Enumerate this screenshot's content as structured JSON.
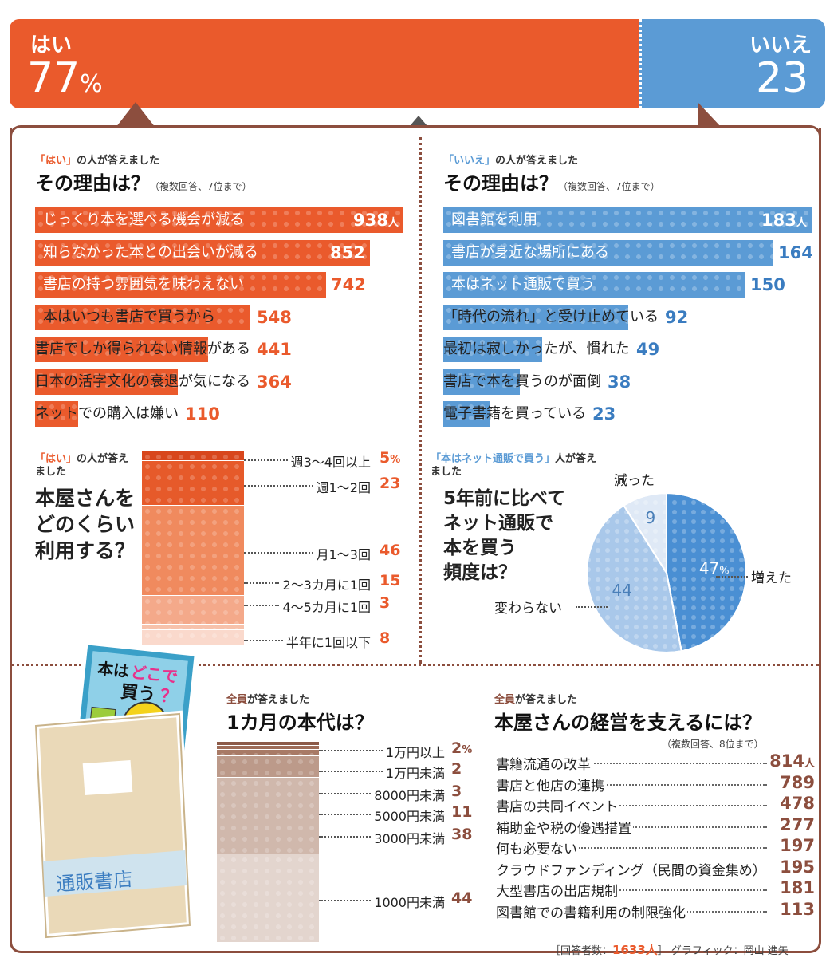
{
  "top": {
    "yes_label": "はい",
    "yes_value": "77",
    "yes_unit": "%",
    "no_label": "いいえ",
    "no_value": "23",
    "chart_data": {
      "type": "bar",
      "categories": [
        "はい",
        "いいえ"
      ],
      "values": [
        77,
        23
      ]
    }
  },
  "yes_reasons": {
    "tag_prefix": "「はい」",
    "tag_rest": "の人が答えました",
    "title": "その理由は？",
    "note": "（複数回答、7位まで）",
    "unit": "人",
    "chart_data": {
      "type": "bar",
      "categories": [
        "じっくり本を選べる機会が減る",
        "知らなかった本との出会いが減る",
        "書店の持つ雰囲気を味わえない",
        "本はいつも書店で買うから",
        "書店でしか得られない情報がある",
        "日本の活字文化の衰退が気になる",
        "ネットでの購入は嫌い"
      ],
      "values": [
        938,
        852,
        742,
        548,
        441,
        364,
        110
      ],
      "xlim": [
        0,
        938
      ]
    }
  },
  "no_reasons": {
    "tag_prefix": "「いいえ」",
    "tag_rest": "の人が答えました",
    "title": "その理由は？",
    "note": "（複数回答、7位まで）",
    "unit": "人",
    "chart_data": {
      "type": "bar",
      "categories": [
        "図書館を利用",
        "書店が身近な場所にある",
        "本はネット通販で買う",
        "「時代の流れ」と受け止めている",
        "最初は寂しかったが、慣れた",
        "書店で本を買うのが面倒",
        "電子書籍を買っている"
      ],
      "values": [
        183,
        164,
        150,
        92,
        49,
        38,
        23
      ],
      "xlim": [
        0,
        183
      ]
    }
  },
  "frequency": {
    "tag_prefix": "「はい」",
    "tag_rest": "の人が答えました",
    "title_lines": [
      "本屋さんを",
      "どのくらい",
      "利用する？"
    ],
    "unit": "%",
    "chart_data": {
      "type": "bar",
      "categories": [
        "週3～4回以上",
        "週1～2回",
        "月1～3回",
        "2～3カ月に1回",
        "4～5カ月に1回",
        "半年に1回以下"
      ],
      "values": [
        5,
        23,
        46,
        15,
        3,
        8
      ]
    }
  },
  "net": {
    "tag_prefix": "「本はネット通販で買う」",
    "tag_rest": "人が答えました",
    "title_lines": [
      "5年前に比べて",
      "ネット通販で",
      "本を買う",
      "頻度は？"
    ],
    "unit": "%",
    "chart_data": {
      "type": "pie",
      "categories": [
        "増えた",
        "変わらない",
        "減った"
      ],
      "values": [
        47,
        44,
        9
      ]
    }
  },
  "monthly": {
    "tag_prefix": "全員",
    "tag_rest": "が答えました",
    "title": "1カ月の本代は？",
    "unit": "%",
    "chart_data": {
      "type": "bar",
      "categories": [
        "1万円以上",
        "1万円未満",
        "8000円未満",
        "5000円未満",
        "3000円未満",
        "1000円未満"
      ],
      "values": [
        2,
        2,
        3,
        11,
        38,
        44
      ]
    }
  },
  "support": {
    "tag_prefix": "全員",
    "tag_rest": "が答えました",
    "title": "本屋さんの経営を支えるには？",
    "note": "（複数回答、8位まで）",
    "unit": "人",
    "chart_data": {
      "type": "table",
      "categories": [
        "書籍流通の改革",
        "書店と他店の連携",
        "書店の共同イベント",
        "補助金や税の優遇措置",
        "何も必要ない",
        "クラウドファンディング（民間の資金集め）",
        "大型書店の出店規制",
        "図書館での書籍利用の制限強化"
      ],
      "values": [
        814,
        789,
        478,
        277,
        197,
        195,
        181,
        113
      ]
    }
  },
  "illustration": {
    "book_title_1": "本は",
    "book_title_2": "どこで",
    "book_title_3": "買う",
    "book_title_4": "？",
    "envelope_text": "通販書店"
  },
  "footer": {
    "respondents_label": "回答者数：",
    "respondents_value": "1633人",
    "credit": "グラフィック：岡山 進矢"
  },
  "colors": {
    "orange": "#ea5a2c",
    "blue": "#5b9bd5",
    "brown": "#8c4e3e",
    "frame": "#8c4e3e"
  }
}
